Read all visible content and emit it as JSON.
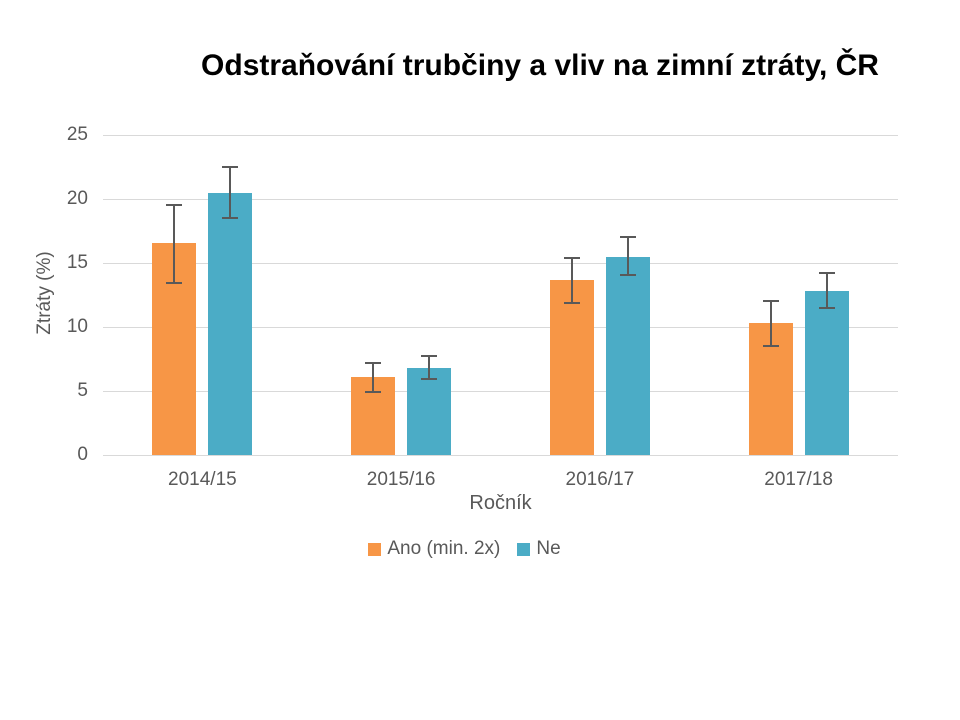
{
  "chart_data": {
    "type": "bar",
    "title": "Odstraňování trubčiny a vliv na zimní ztráty, ČR",
    "xlabel": "Ročník",
    "ylabel": "Ztráty (%)",
    "categories": [
      "2014/15",
      "2015/16",
      "2016/17",
      "2017/18"
    ],
    "series": [
      {
        "name": "Ano (min. 2x)",
        "color": "#F79646",
        "values": [
          16.6,
          6.1,
          13.7,
          10.3
        ],
        "error_low": [
          13.4,
          4.9,
          11.9,
          8.5
        ],
        "error_high": [
          19.5,
          7.2,
          15.4,
          12.0
        ]
      },
      {
        "name": "Ne",
        "color": "#4BACC6",
        "values": [
          20.5,
          6.8,
          15.5,
          12.8
        ],
        "error_low": [
          18.5,
          5.9,
          14.1,
          11.5
        ],
        "error_high": [
          22.5,
          7.7,
          17.0,
          14.2
        ]
      }
    ],
    "ylim": [
      0,
      25
    ],
    "yticks": [
      0,
      5,
      10,
      15,
      20,
      25
    ],
    "grid": true,
    "legend_position": "bottom",
    "error_bars": true
  },
  "style": {
    "grid_color": "#D9D9D9",
    "error_bar_color": "#595959",
    "axis_text_color": "#595959",
    "title_color": "#000000",
    "background": "#FFFFFF"
  }
}
